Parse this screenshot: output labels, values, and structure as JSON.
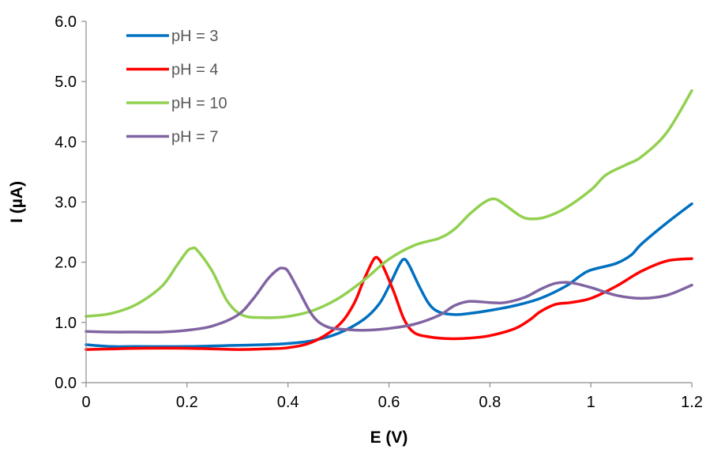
{
  "chart_data": {
    "type": "line",
    "xlabel": "E (V)",
    "ylabel": "I (µA)",
    "xlim": [
      0,
      1.2
    ],
    "ylim": [
      0,
      6.0
    ],
    "x_ticks": [
      "0",
      "0.2",
      "0.4",
      "0.6",
      "0.8",
      "1",
      "1.2"
    ],
    "y_ticks": [
      "0.0",
      "1.0",
      "2.0",
      "3.0",
      "4.0",
      "5.0",
      "6.0"
    ],
    "grid": false,
    "legend_position": "top-left",
    "series": [
      {
        "name": "pH = 3",
        "color": "#0070C0",
        "points": [
          [
            0,
            0.63
          ],
          [
            0.05,
            0.6
          ],
          [
            0.1,
            0.6
          ],
          [
            0.2,
            0.6
          ],
          [
            0.3,
            0.62
          ],
          [
            0.35,
            0.63
          ],
          [
            0.4,
            0.65
          ],
          [
            0.45,
            0.7
          ],
          [
            0.5,
            0.82
          ],
          [
            0.55,
            1.05
          ],
          [
            0.58,
            1.3
          ],
          [
            0.6,
            1.6
          ],
          [
            0.62,
            1.95
          ],
          [
            0.63,
            2.05
          ],
          [
            0.64,
            1.95
          ],
          [
            0.66,
            1.6
          ],
          [
            0.68,
            1.3
          ],
          [
            0.7,
            1.17
          ],
          [
            0.73,
            1.13
          ],
          [
            0.76,
            1.15
          ],
          [
            0.8,
            1.2
          ],
          [
            0.85,
            1.28
          ],
          [
            0.9,
            1.4
          ],
          [
            0.95,
            1.6
          ],
          [
            0.98,
            1.78
          ],
          [
            1.0,
            1.87
          ],
          [
            1.05,
            1.98
          ],
          [
            1.08,
            2.12
          ],
          [
            1.1,
            2.3
          ],
          [
            1.15,
            2.65
          ],
          [
            1.2,
            2.97
          ]
        ]
      },
      {
        "name": "pH = 4",
        "color": "#FF0000",
        "points": [
          [
            0,
            0.55
          ],
          [
            0.05,
            0.56
          ],
          [
            0.1,
            0.57
          ],
          [
            0.2,
            0.57
          ],
          [
            0.3,
            0.55
          ],
          [
            0.35,
            0.56
          ],
          [
            0.4,
            0.58
          ],
          [
            0.45,
            0.68
          ],
          [
            0.5,
            0.95
          ],
          [
            0.53,
            1.3
          ],
          [
            0.55,
            1.7
          ],
          [
            0.57,
            2.05
          ],
          [
            0.58,
            2.05
          ],
          [
            0.59,
            1.9
          ],
          [
            0.61,
            1.5
          ],
          [
            0.63,
            1.05
          ],
          [
            0.65,
            0.83
          ],
          [
            0.68,
            0.76
          ],
          [
            0.72,
            0.73
          ],
          [
            0.76,
            0.74
          ],
          [
            0.8,
            0.78
          ],
          [
            0.85,
            0.9
          ],
          [
            0.88,
            1.05
          ],
          [
            0.9,
            1.18
          ],
          [
            0.93,
            1.3
          ],
          [
            0.96,
            1.33
          ],
          [
            1.0,
            1.4
          ],
          [
            1.05,
            1.6
          ],
          [
            1.1,
            1.85
          ],
          [
            1.15,
            2.02
          ],
          [
            1.2,
            2.06
          ]
        ]
      },
      {
        "name": "pH = 10",
        "color": "#92D050",
        "points": [
          [
            0,
            1.1
          ],
          [
            0.05,
            1.15
          ],
          [
            0.1,
            1.3
          ],
          [
            0.15,
            1.6
          ],
          [
            0.18,
            1.95
          ],
          [
            0.2,
            2.18
          ],
          [
            0.21,
            2.23
          ],
          [
            0.22,
            2.2
          ],
          [
            0.25,
            1.85
          ],
          [
            0.28,
            1.35
          ],
          [
            0.31,
            1.12
          ],
          [
            0.35,
            1.08
          ],
          [
            0.4,
            1.1
          ],
          [
            0.45,
            1.2
          ],
          [
            0.5,
            1.4
          ],
          [
            0.55,
            1.7
          ],
          [
            0.6,
            2.05
          ],
          [
            0.65,
            2.28
          ],
          [
            0.7,
            2.4
          ],
          [
            0.73,
            2.55
          ],
          [
            0.76,
            2.8
          ],
          [
            0.79,
            3.0
          ],
          [
            0.81,
            3.05
          ],
          [
            0.83,
            2.95
          ],
          [
            0.86,
            2.77
          ],
          [
            0.88,
            2.72
          ],
          [
            0.91,
            2.75
          ],
          [
            0.95,
            2.9
          ],
          [
            1.0,
            3.2
          ],
          [
            1.03,
            3.45
          ],
          [
            1.07,
            3.62
          ],
          [
            1.1,
            3.75
          ],
          [
            1.15,
            4.15
          ],
          [
            1.2,
            4.85
          ]
        ]
      },
      {
        "name": "pH = 7",
        "color": "#8064A2",
        "points": [
          [
            0,
            0.85
          ],
          [
            0.05,
            0.84
          ],
          [
            0.1,
            0.84
          ],
          [
            0.15,
            0.84
          ],
          [
            0.2,
            0.87
          ],
          [
            0.25,
            0.94
          ],
          [
            0.3,
            1.12
          ],
          [
            0.33,
            1.38
          ],
          [
            0.36,
            1.72
          ],
          [
            0.38,
            1.88
          ],
          [
            0.39,
            1.9
          ],
          [
            0.4,
            1.85
          ],
          [
            0.42,
            1.55
          ],
          [
            0.45,
            1.1
          ],
          [
            0.48,
            0.92
          ],
          [
            0.52,
            0.88
          ],
          [
            0.55,
            0.87
          ],
          [
            0.6,
            0.9
          ],
          [
            0.65,
            0.97
          ],
          [
            0.7,
            1.12
          ],
          [
            0.73,
            1.28
          ],
          [
            0.76,
            1.35
          ],
          [
            0.8,
            1.33
          ],
          [
            0.83,
            1.33
          ],
          [
            0.87,
            1.42
          ],
          [
            0.9,
            1.55
          ],
          [
            0.93,
            1.65
          ],
          [
            0.96,
            1.66
          ],
          [
            1.0,
            1.58
          ],
          [
            1.05,
            1.45
          ],
          [
            1.1,
            1.4
          ],
          [
            1.15,
            1.45
          ],
          [
            1.2,
            1.62
          ]
        ]
      }
    ]
  }
}
